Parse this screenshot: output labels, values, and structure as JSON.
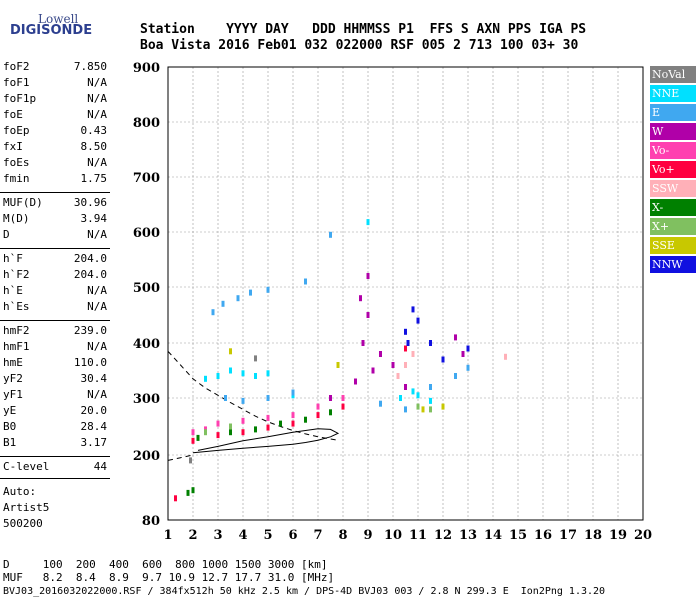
{
  "logo": {
    "line1": "Lowell",
    "line2": "DIGISONDE"
  },
  "header": {
    "row1": "Station    YYYY DAY   DDD HHMMSS P1  FFS S AXN PPS IGA PS",
    "row2": "Boa Vista 2016 Feb01 032 022000 RSF 005 2 713 100 03+ 30"
  },
  "params_group1": [
    {
      "name": "foF2",
      "value": "7.850"
    },
    {
      "name": "foF1",
      "value": "N/A"
    },
    {
      "name": "foF1p",
      "value": "N/A"
    },
    {
      "name": "foE",
      "value": "N/A"
    },
    {
      "name": "foEp",
      "value": "0.43"
    },
    {
      "name": "fxI",
      "value": "8.50"
    },
    {
      "name": "foEs",
      "value": "N/A"
    },
    {
      "name": "fmin",
      "value": "1.75"
    }
  ],
  "params_group2": [
    {
      "name": "MUF(D)",
      "value": "30.96"
    },
    {
      "name": "M(D)",
      "value": "3.94"
    },
    {
      "name": "D",
      "value": "N/A"
    }
  ],
  "params_group3": [
    {
      "name": "h`F",
      "value": "204.0"
    },
    {
      "name": "h`F2",
      "value": "204.0"
    },
    {
      "name": "h`E",
      "value": "N/A"
    },
    {
      "name": "h`Es",
      "value": "N/A"
    }
  ],
  "params_group4": [
    {
      "name": "hmF2",
      "value": "239.0"
    },
    {
      "name": "hmF1",
      "value": "N/A"
    },
    {
      "name": "hmE",
      "value": "110.0"
    },
    {
      "name": "yF2",
      "value": "30.4"
    },
    {
      "name": "yF1",
      "value": "N/A"
    },
    {
      "name": "yE",
      "value": "20.0"
    },
    {
      "name": "B0",
      "value": "28.4"
    },
    {
      "name": "B1",
      "value": "3.17"
    }
  ],
  "params_group5": [
    {
      "name": "C-level",
      "value": "44"
    }
  ],
  "auto": {
    "line1": "Auto:",
    "line2": "Artist5",
    "line3": "500200"
  },
  "bottom": {
    "line1": "D     100  200  400  600  800 1000 1500 3000 [km]",
    "line2": "MUF   8.2  8.4  8.9  9.7 10.9 12.7 17.7 31.0 [MHz]",
    "line3": "BVJ03_2016032022000.RSF / 384fx512h 50 kHz 2.5 km / DPS-4D BVJ03 003 / 2.8 N 299.3 E  Ion2Png 1.3.20"
  },
  "legend": [
    {
      "label": "NoVal",
      "color": "#808080"
    },
    {
      "label": "NNE",
      "color": "#00e0ff"
    },
    {
      "label": "E",
      "color": "#40a8f0"
    },
    {
      "label": "W",
      "color": "#b000a8"
    },
    {
      "label": "Vo-",
      "color": "#ff40b0"
    },
    {
      "label": "Vo+",
      "color": "#ff0040"
    },
    {
      "label": "SSW",
      "color": "#ffb0b8"
    },
    {
      "label": "X-",
      "color": "#008000"
    },
    {
      "label": "X+",
      "color": "#80c060"
    },
    {
      "label": "SSE",
      "color": "#c8c800"
    },
    {
      "label": "NNW",
      "color": "#1010e0"
    }
  ],
  "chart_data": {
    "type": "scatter",
    "xlim": [
      1,
      20
    ],
    "ylim": [
      80,
      900
    ],
    "x_ticks": [
      1,
      2,
      3,
      4,
      5,
      6,
      7,
      8,
      9,
      10,
      11,
      12,
      13,
      14,
      15,
      16,
      17,
      18,
      19,
      20
    ],
    "y_ticks": [
      80,
      200,
      300,
      400,
      500,
      600,
      700,
      800,
      900
    ],
    "grid": true,
    "legend_position": "right",
    "series": [
      {
        "name": "NoVal",
        "points": [
          [
            4.5,
            372
          ],
          [
            1.9,
            190
          ]
        ]
      },
      {
        "name": "NNE",
        "points": [
          [
            4.0,
            345
          ],
          [
            4.5,
            340
          ],
          [
            5.0,
            345
          ],
          [
            3.5,
            350
          ],
          [
            9.0,
            618
          ],
          [
            10.3,
            300
          ],
          [
            11.0,
            305
          ],
          [
            11.5,
            295
          ],
          [
            2.5,
            335
          ],
          [
            3.0,
            340
          ],
          [
            6.0,
            305
          ],
          [
            10.8,
            312
          ]
        ]
      },
      {
        "name": "E",
        "points": [
          [
            3.2,
            470
          ],
          [
            3.8,
            480
          ],
          [
            4.3,
            490
          ],
          [
            5.0,
            495
          ],
          [
            2.8,
            455
          ],
          [
            3.3,
            300
          ],
          [
            4.0,
            295
          ],
          [
            5.0,
            300
          ],
          [
            6.0,
            310
          ],
          [
            12.5,
            340
          ],
          [
            9.5,
            290
          ],
          [
            10.5,
            280
          ],
          [
            7.5,
            595
          ],
          [
            6.5,
            510
          ],
          [
            13.0,
            355
          ],
          [
            11.5,
            320
          ]
        ]
      },
      {
        "name": "W",
        "points": [
          [
            9.0,
            450
          ],
          [
            8.8,
            400
          ],
          [
            9.2,
            350
          ],
          [
            9.5,
            380
          ],
          [
            8.5,
            330
          ],
          [
            10.0,
            360
          ],
          [
            10.5,
            320
          ],
          [
            8.0,
            300
          ],
          [
            9.0,
            520
          ],
          [
            8.7,
            480
          ],
          [
            7.5,
            300
          ],
          [
            12.8,
            380
          ],
          [
            12.5,
            410
          ]
        ]
      },
      {
        "name": "Vo-",
        "points": [
          [
            3.0,
            255
          ],
          [
            4.0,
            260
          ],
          [
            5.0,
            265
          ],
          [
            6.0,
            270
          ],
          [
            7.0,
            285
          ],
          [
            2.5,
            245
          ],
          [
            2.0,
            240
          ],
          [
            8.0,
            300
          ],
          [
            10.5,
            360
          ]
        ]
      },
      {
        "name": "Vo+",
        "points": [
          [
            2.0,
            225
          ],
          [
            3.0,
            235
          ],
          [
            4.0,
            240
          ],
          [
            5.0,
            248
          ],
          [
            6.0,
            255
          ],
          [
            7.0,
            270
          ],
          [
            8.0,
            285
          ],
          [
            1.3,
            120
          ],
          [
            10.5,
            390
          ]
        ]
      },
      {
        "name": "SSW",
        "points": [
          [
            10.5,
            360
          ],
          [
            10.2,
            340
          ],
          [
            14.5,
            375
          ],
          [
            10.8,
            380
          ]
        ]
      },
      {
        "name": "X-",
        "points": [
          [
            2.2,
            230
          ],
          [
            3.5,
            240
          ],
          [
            4.5,
            245
          ],
          [
            5.5,
            255
          ],
          [
            6.5,
            262
          ],
          [
            7.5,
            275
          ],
          [
            2.0,
            135
          ],
          [
            1.8,
            130
          ]
        ]
      },
      {
        "name": "X+",
        "points": [
          [
            11.0,
            285
          ],
          [
            11.5,
            280
          ],
          [
            2.5,
            240
          ],
          [
            3.5,
            250
          ]
        ]
      },
      {
        "name": "SSE",
        "points": [
          [
            11.2,
            280
          ],
          [
            12.0,
            285
          ],
          [
            3.5,
            385
          ],
          [
            7.8,
            360
          ]
        ]
      },
      {
        "name": "NNW",
        "points": [
          [
            10.5,
            420
          ],
          [
            10.8,
            460
          ],
          [
            10.6,
            400
          ],
          [
            11.0,
            440
          ],
          [
            12.0,
            370
          ],
          [
            13.0,
            390
          ],
          [
            11.5,
            400
          ]
        ]
      }
    ],
    "curves": [
      {
        "style": "dashed",
        "points": [
          [
            1.0,
            385
          ],
          [
            1.5,
            360
          ],
          [
            2.0,
            335
          ],
          [
            2.5,
            318
          ],
          [
            3.0,
            305
          ],
          [
            3.5,
            292
          ],
          [
            4.0,
            280
          ],
          [
            4.5,
            268
          ],
          [
            5.0,
            258
          ],
          [
            5.5,
            250
          ],
          [
            6.0,
            243
          ],
          [
            6.5,
            237
          ],
          [
            7.0,
            232
          ],
          [
            7.5,
            228
          ],
          [
            7.8,
            226
          ]
        ]
      },
      {
        "style": "dashed",
        "points": [
          [
            1.0,
            190
          ],
          [
            1.5,
            195
          ],
          [
            2.0,
            200
          ]
        ]
      },
      {
        "style": "solid",
        "points": [
          [
            2.0,
            204
          ],
          [
            3.0,
            208
          ],
          [
            4.0,
            212
          ],
          [
            5.0,
            215
          ],
          [
            6.0,
            219
          ],
          [
            6.5,
            222
          ],
          [
            7.0,
            226
          ],
          [
            7.5,
            232
          ],
          [
            7.8,
            238
          ],
          [
            7.5,
            245
          ],
          [
            7.0,
            246
          ],
          [
            6.0,
            240
          ],
          [
            5.0,
            232
          ],
          [
            4.0,
            225
          ],
          [
            3.0,
            215
          ],
          [
            2.2,
            208
          ]
        ]
      }
    ]
  }
}
